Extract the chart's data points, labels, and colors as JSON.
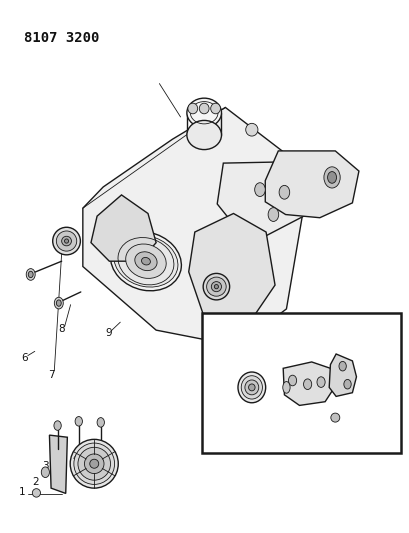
{
  "title_code": "8107 3200",
  "background_color": "#ffffff",
  "line_color": "#1a1a1a",
  "label_color": "#111111",
  "fig_width": 4.1,
  "fig_height": 5.33,
  "dpi": 100
}
